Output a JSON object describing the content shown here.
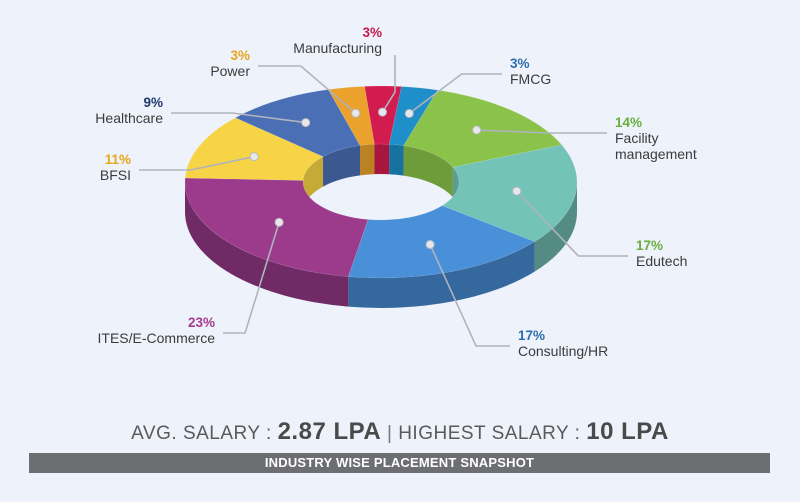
{
  "chart_data": {
    "type": "pie",
    "subtype": "3d-donut",
    "categories": [
      "FMCG",
      "Facility management",
      "Edutech",
      "Consulting/HR",
      "ITES/E-Commerce",
      "BFSI",
      "Healthcare",
      "Power",
      "Manufacturing"
    ],
    "values": [
      3,
      14,
      17,
      17,
      23,
      11,
      9,
      3,
      3
    ],
    "labels": [
      {
        "pct": "3%",
        "name": [
          "FMCG"
        ],
        "color": "#2c6fb0"
      },
      {
        "pct": "14%",
        "name": [
          "Facility",
          "management"
        ],
        "color": "#6aaf3d"
      },
      {
        "pct": "17%",
        "name": [
          "Edutech"
        ],
        "color": "#6aaf3d"
      },
      {
        "pct": "17%",
        "name": [
          "Consulting/HR"
        ],
        "color": "#2c6fb0"
      },
      {
        "pct": "23%",
        "name": [
          "ITES/E-Commerce"
        ],
        "color": "#a53a8f"
      },
      {
        "pct": "11%",
        "name": [
          "BFSI"
        ],
        "color": "#e8a619"
      },
      {
        "pct": "9%",
        "name": [
          "Healthcare"
        ],
        "color": "#1e3a6e"
      },
      {
        "pct": "3%",
        "name": [
          "Power"
        ],
        "color": "#e8a619"
      },
      {
        "pct": "3%",
        "name": [
          "Manufacturing"
        ],
        "color": "#c8194c"
      }
    ],
    "slice_colors": [
      "#1e8fc9",
      "#8bc34a",
      "#74c3b7",
      "#4a90d9",
      "#9c3b8c",
      "#f6d445",
      "#4a6fb4",
      "#eaa22d",
      "#d21c4f"
    ]
  },
  "summary": {
    "avg_label": "AVG. SALARY :",
    "avg_value": "2.87 LPA",
    "separator": "|",
    "high_label": "HIGHEST SALARY :",
    "high_value": "10 LPA"
  },
  "footer": {
    "title": "INDUSTRY WISE PLACEMENT SNAPSHOT"
  }
}
